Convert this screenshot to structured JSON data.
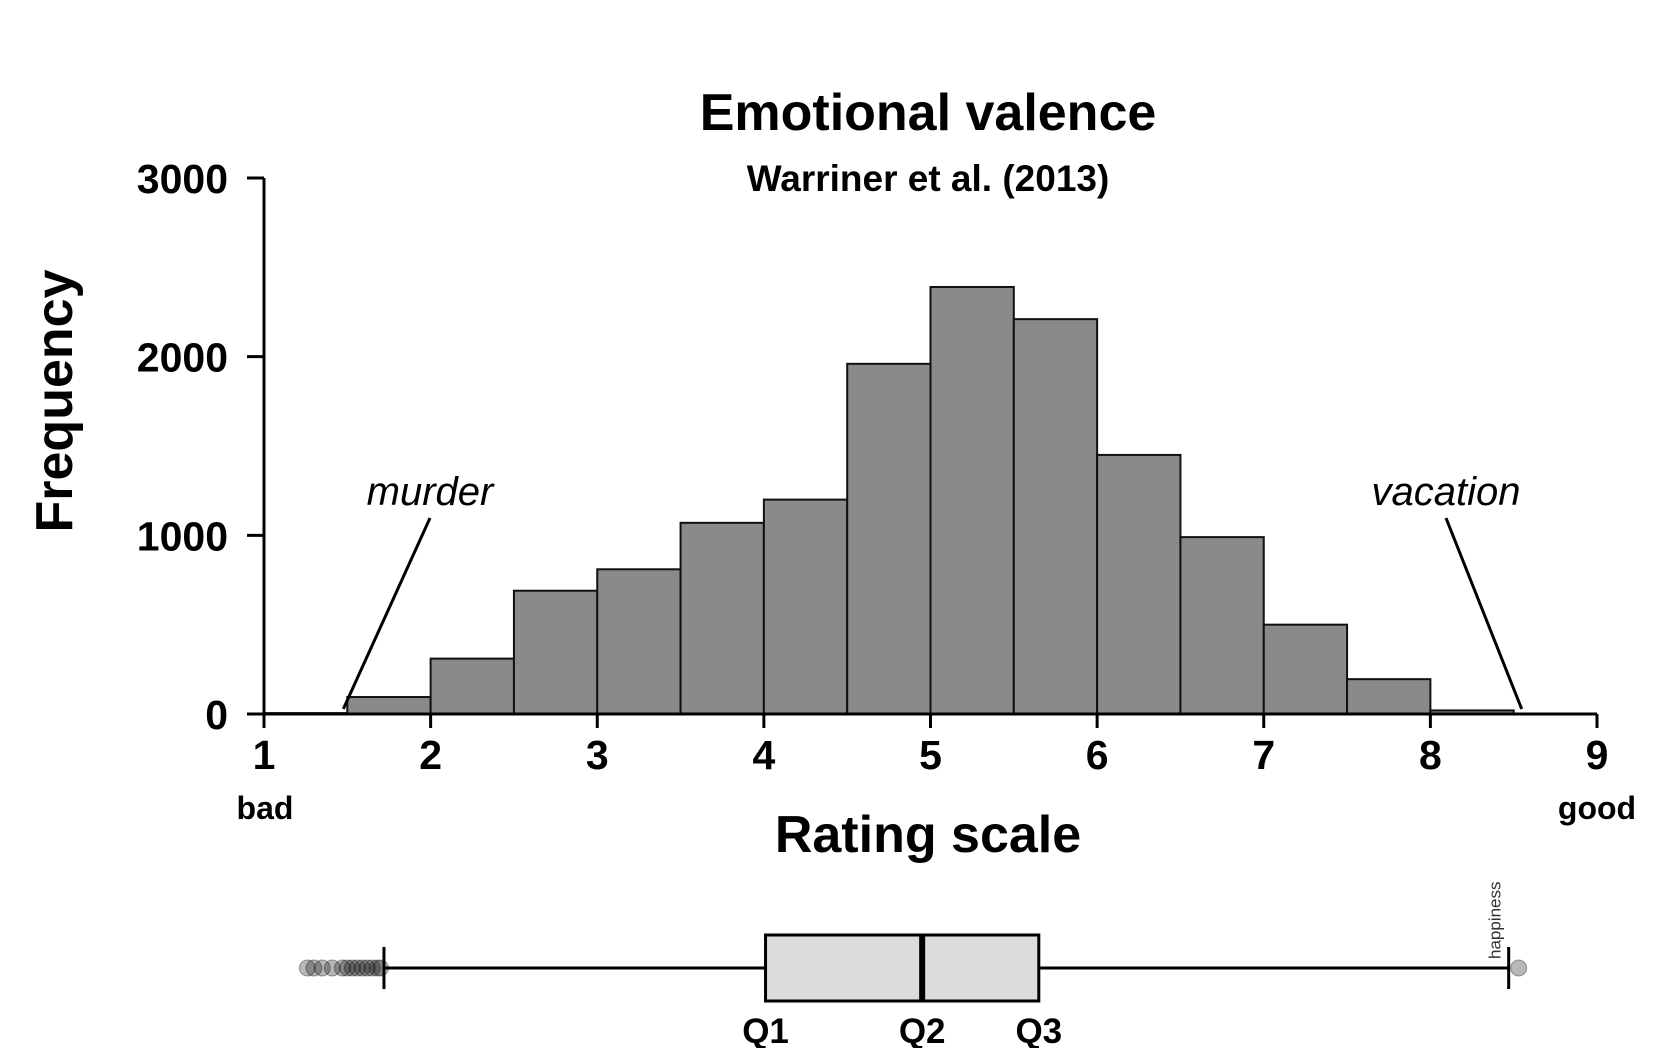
{
  "chart_data": {
    "type": "bar",
    "title": "Emotional valence",
    "subtitle": "Warriner et al. (2013)",
    "xlabel": "Rating scale",
    "ylabel": "Frequency",
    "xlim": [
      1,
      9
    ],
    "ylim": [
      0,
      3000
    ],
    "x_ticks": [
      "1",
      "2",
      "3",
      "4",
      "5",
      "6",
      "7",
      "8",
      "9"
    ],
    "y_ticks": [
      "0",
      "1000",
      "2000",
      "3000"
    ],
    "x_end_labels": {
      "left": "bad",
      "right": "good"
    },
    "bin_width": 0.5,
    "bins": [
      {
        "start": 1.0,
        "value": 5
      },
      {
        "start": 1.5,
        "value": 95
      },
      {
        "start": 2.0,
        "value": 310
      },
      {
        "start": 2.5,
        "value": 690
      },
      {
        "start": 3.0,
        "value": 810
      },
      {
        "start": 3.5,
        "value": 1070
      },
      {
        "start": 4.0,
        "value": 1200
      },
      {
        "start": 4.5,
        "value": 1960
      },
      {
        "start": 5.0,
        "value": 2390
      },
      {
        "start": 5.5,
        "value": 2210
      },
      {
        "start": 6.0,
        "value": 1450
      },
      {
        "start": 6.5,
        "value": 990
      },
      {
        "start": 7.0,
        "value": 500
      },
      {
        "start": 7.5,
        "value": 195
      },
      {
        "start": 8.0,
        "value": 20
      }
    ],
    "annotations": [
      {
        "text": "murder",
        "x": 1.5
      },
      {
        "text": "vacation",
        "x": 8.53
      }
    ],
    "boxplot": {
      "q1": 4.01,
      "q2": 4.95,
      "q3": 5.65,
      "whisker_low": 1.72,
      "whisker_high": 8.47,
      "labels": {
        "q1": "Q1",
        "q2": "Q2",
        "q3": "Q3"
      },
      "outliers_low": [
        1.26,
        1.3,
        1.35,
        1.41,
        1.47,
        1.5,
        1.53,
        1.56,
        1.59,
        1.62,
        1.65,
        1.68,
        1.7
      ],
      "outliers_high": [
        8.53
      ],
      "outlier_label": "happiness"
    },
    "grid": false,
    "legend": "none"
  }
}
